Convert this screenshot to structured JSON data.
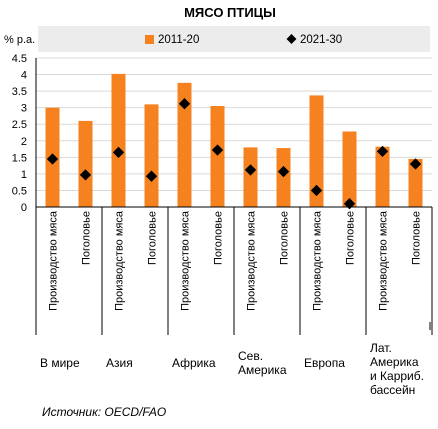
{
  "chart_data": {
    "type": "bar",
    "title": "МЯСО ПТИЦЫ",
    "ylabel": "% р.а.",
    "ylim": [
      0,
      4.5
    ],
    "yticks": [
      "0",
      "0.5",
      "1",
      "1.5",
      "2",
      "2.5",
      "3",
      "3.5",
      "4",
      "4.5"
    ],
    "grid": true,
    "legend_position": "top",
    "categories": [
      "Производство мяса",
      "Поголовье",
      "Производство мяса",
      "Поголовье",
      "Производство мяса",
      "Поголовье",
      "Производство мяса",
      "Поголовье",
      "Производство мяса",
      "Поголовье",
      "Производство мяса",
      "Поголовье"
    ],
    "groups": [
      {
        "label": "В мире",
        "lines": [
          "В мире"
        ]
      },
      {
        "label": "Азия",
        "lines": [
          "Азия"
        ]
      },
      {
        "label": "Африка",
        "lines": [
          "Африка"
        ]
      },
      {
        "label": "Сев. Америка",
        "lines": [
          "Сев.",
          "Америка"
        ]
      },
      {
        "label": "Европа",
        "lines": [
          "Европа"
        ]
      },
      {
        "label": "Лат. Америка и Карриб. бассейн",
        "lines": [
          "Лат.",
          "Америка",
          "и Карриб.",
          "бассейн"
        ]
      }
    ],
    "series": [
      {
        "name": "2011-20",
        "kind": "bar",
        "color": "#F5821F",
        "values": [
          3.0,
          2.6,
          4.02,
          3.1,
          3.75,
          3.05,
          1.8,
          1.78,
          3.37,
          2.28,
          1.82,
          1.45
        ]
      },
      {
        "name": "2021-30",
        "kind": "marker",
        "color": "#000000",
        "values": [
          1.45,
          0.97,
          1.65,
          0.93,
          3.12,
          1.72,
          1.12,
          1.07,
          0.5,
          0.1,
          1.68,
          1.3
        ]
      }
    ]
  },
  "source": "Источник: OECD/FAO",
  "colors": {
    "bar": "#F5821F",
    "marker": "#000000",
    "grid": "#d9d9d9",
    "legend_bg": "#ececec"
  }
}
